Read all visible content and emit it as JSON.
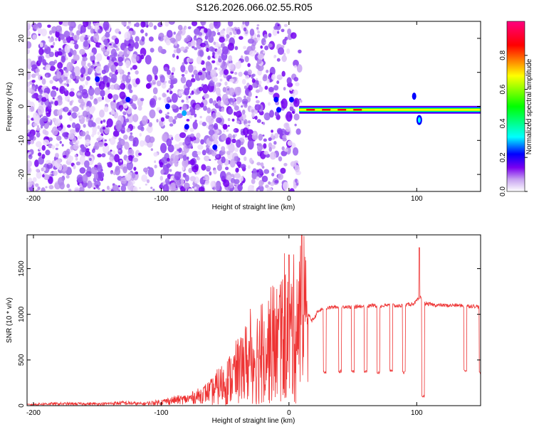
{
  "figure_title": "S126.2026.066.02.55.R05",
  "chart_data": [
    {
      "type": "heatmap",
      "title": "S126.2026.066.02.55.R05",
      "xlabel": "Height of straight line (km)",
      "ylabel": "Frequency (Hz)",
      "xlim": [
        -205,
        150
      ],
      "ylim": [
        -25,
        25
      ],
      "xticks": [
        -200,
        -100,
        0,
        100
      ],
      "yticks": [
        -20,
        -10,
        0,
        10,
        20
      ],
      "colorbar": {
        "label": "Normalized spectral amplitude",
        "range": [
          0,
          1
        ],
        "ticks": [
          0.0,
          0.2,
          0.4,
          0.6,
          0.8
        ],
        "colormap": [
          "#ffffff",
          "#c7a3f0",
          "#7a00f0",
          "#0000ff",
          "#00ffff",
          "#00ff00",
          "#ffff00",
          "#ff0000",
          "#ff0080"
        ]
      },
      "features": [
        {
          "description": "scattered noise",
          "x_range": [
            -205,
            10
          ],
          "freq_range": [
            -25,
            25
          ]
        },
        {
          "description": "steady tone",
          "x_range": [
            8,
            150
          ],
          "freq_hz": -1,
          "peak_amplitude": 0.95
        },
        {
          "description": "frequency jump",
          "x_at": 102,
          "freq_hz": -4
        }
      ]
    },
    {
      "type": "line",
      "xlabel": "Height of straight line (km)",
      "ylabel": "SNR (10 * v/v)",
      "xlim": [
        -205,
        150
      ],
      "ylim": [
        0,
        1870
      ],
      "xticks": [
        -200,
        -100,
        0,
        100
      ],
      "yticks": [
        0,
        500,
        1000,
        1500
      ],
      "color": "#ee3333",
      "series": [
        {
          "name": "SNR",
          "x": [
            -205,
            -190,
            -175,
            -160,
            -145,
            -130,
            -115,
            -100,
            -90,
            -80,
            -70,
            -60,
            -55,
            -50,
            -45,
            -40,
            -35,
            -30,
            -25,
            -20,
            -15,
            -10,
            -5,
            0,
            3,
            6,
            9,
            12,
            15,
            18,
            20,
            22,
            25,
            30,
            35,
            40,
            45,
            50,
            55,
            60,
            65,
            70,
            75,
            80,
            85,
            90,
            95,
            98,
            100,
            103,
            106,
            110,
            115,
            120,
            125,
            130,
            135,
            140,
            145,
            150
          ],
          "values": [
            10,
            20,
            20,
            20,
            20,
            30,
            20,
            40,
            60,
            70,
            110,
            170,
            240,
            280,
            340,
            420,
            500,
            550,
            620,
            650,
            720,
            760,
            820,
            870,
            900,
            1000,
            920,
            960,
            1000,
            930,
            960,
            1020,
            1050,
            1070,
            1080,
            1080,
            1085,
            1075,
            1090,
            1080,
            1100,
            1085,
            1095,
            1100,
            1090,
            1100,
            1110,
            1120,
            1150,
            1180,
            1120,
            1110,
            1100,
            1100,
            1095,
            1100,
            1095,
            1090,
            1090,
            1080
          ],
          "peaks": [
            {
              "x": 0,
              "value": 1650
            },
            {
              "x": 10,
              "value": 1870
            },
            {
              "x": 102,
              "value": 1730
            }
          ],
          "dropouts": [
            {
              "x": 28,
              "value": 350
            },
            {
              "x": 40,
              "value": 360
            },
            {
              "x": 50,
              "value": 360
            },
            {
              "x": 60,
              "value": 360
            },
            {
              "x": 70,
              "value": 350
            },
            {
              "x": 80,
              "value": 370
            },
            {
              "x": 90,
              "value": 350
            },
            {
              "x": 105,
              "value": 90
            },
            {
              "x": 138,
              "value": 370
            },
            {
              "x": 150,
              "value": 340
            }
          ]
        }
      ]
    }
  ]
}
